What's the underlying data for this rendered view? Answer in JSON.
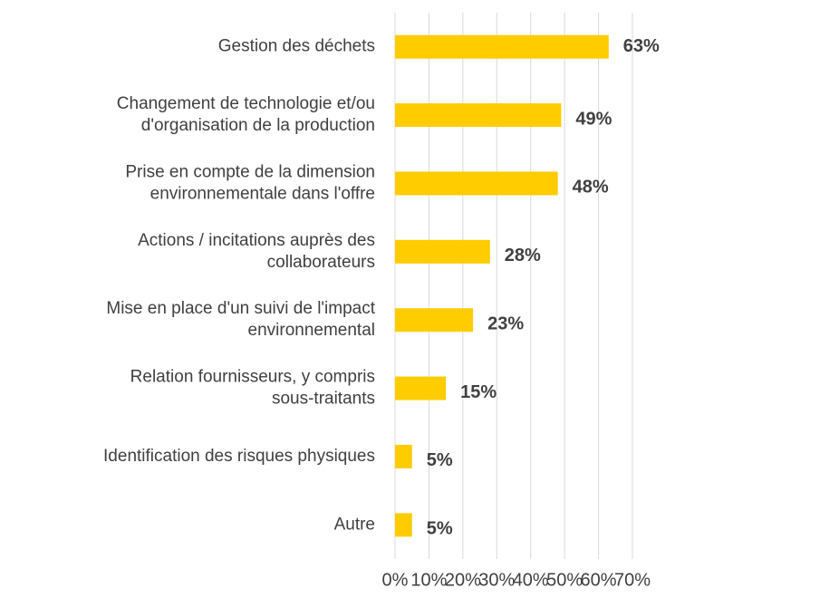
{
  "chart_data": {
    "type": "bar",
    "orientation": "horizontal",
    "categories": [
      "Gestion des déchets",
      "Changement de technologie et/ou\nd'organisation de la production",
      "Prise en compte de la dimension\nenvironnementale dans l'offre",
      "Actions / incitations auprès des\ncollaborateurs",
      "Mise en place d'un suivi de l'impact\nenvironnemental",
      "Relation fournisseurs, y compris\nsous-traitants",
      "Identification des risques physiques",
      "Autre"
    ],
    "values": [
      63,
      49,
      48,
      28,
      23,
      15,
      5,
      5
    ],
    "value_labels": [
      "63%",
      "49%",
      "48%",
      "28%",
      "23%",
      "15%",
      "5%",
      "5%"
    ],
    "color": "#ffcc00",
    "xlim": [
      0,
      70
    ],
    "xticks": [
      {
        "value": 0,
        "label": "0%"
      },
      {
        "value": 10,
        "label": "10%"
      },
      {
        "value": 20,
        "label": "20%"
      },
      {
        "value": 30,
        "label": "30%"
      },
      {
        "value": 40,
        "label": "40%"
      },
      {
        "value": 50,
        "label": "50%"
      },
      {
        "value": 60,
        "label": "60%"
      },
      {
        "value": 70,
        "label": "70%"
      }
    ],
    "grid": true
  }
}
